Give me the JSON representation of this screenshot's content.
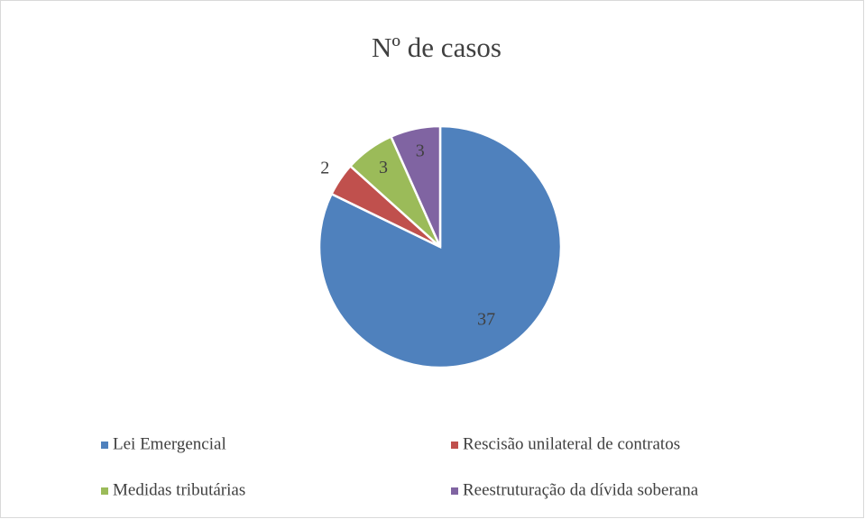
{
  "chart_data": {
    "type": "pie",
    "title": "Nº de casos",
    "categories": [
      "Lei Emergencial",
      "Rescisão unilateral de contratos",
      "Medidas tributárias",
      "Reestruturação da dívida soberana"
    ],
    "values": [
      37,
      2,
      3,
      3
    ],
    "colors": [
      "#4f81bd",
      "#c0504d",
      "#9bbb59",
      "#8064a2"
    ],
    "legend": "bottom"
  }
}
